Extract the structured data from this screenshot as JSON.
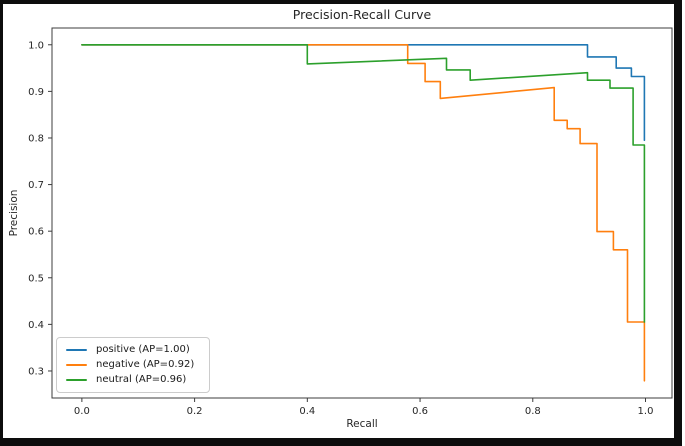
{
  "window": {
    "background": "#ffffff",
    "frame_color": "#0d0d0d"
  },
  "style": {
    "axis_color": "#3c3c3c",
    "text_color": "#262626",
    "legend_border": "#cccccc"
  },
  "chart_data": {
    "type": "line",
    "title": "Precision-Recall Curve",
    "xlabel": "Recall",
    "ylabel": "Precision",
    "xlim": [
      -0.053,
      1.047
    ],
    "ylim": [
      0.242,
      1.036
    ],
    "grid": false,
    "legend_position": "lower left",
    "x_ticks": [
      {
        "value": 0.0,
        "label": "0.0"
      },
      {
        "value": 0.2,
        "label": "0.2"
      },
      {
        "value": 0.4,
        "label": "0.4"
      },
      {
        "value": 0.6,
        "label": "0.6"
      },
      {
        "value": 0.8,
        "label": "0.8"
      },
      {
        "value": 1.0,
        "label": "1.0"
      }
    ],
    "y_ticks": [
      {
        "value": 0.3,
        "label": "0.3"
      },
      {
        "value": 0.4,
        "label": "0.4"
      },
      {
        "value": 0.5,
        "label": "0.5"
      },
      {
        "value": 0.6,
        "label": "0.6"
      },
      {
        "value": 0.7,
        "label": "0.7"
      },
      {
        "value": 0.8,
        "label": "0.8"
      },
      {
        "value": 0.9,
        "label": "0.9"
      },
      {
        "value": 1.0,
        "label": "1.0"
      }
    ],
    "series": [
      {
        "name": "positive",
        "legend_label": "positive (AP=1.00)",
        "ap": 1.0,
        "color": "#1f77b4",
        "points": [
          [
            0.0,
            1.0
          ],
          [
            0.897,
            1.0
          ],
          [
            0.897,
            0.974
          ],
          [
            0.948,
            0.974
          ],
          [
            0.948,
            0.95
          ],
          [
            0.975,
            0.95
          ],
          [
            0.975,
            0.932
          ],
          [
            0.998,
            0.932
          ],
          [
            0.998,
            0.795
          ]
        ]
      },
      {
        "name": "negative",
        "legend_label": "negative (AP=0.92)",
        "ap": 0.92,
        "color": "#ff7f0e",
        "points": [
          [
            0.0,
            1.0
          ],
          [
            0.578,
            1.0
          ],
          [
            0.578,
            0.96
          ],
          [
            0.609,
            0.96
          ],
          [
            0.609,
            0.921
          ],
          [
            0.636,
            0.921
          ],
          [
            0.636,
            0.885
          ],
          [
            0.838,
            0.908
          ],
          [
            0.838,
            0.838
          ],
          [
            0.861,
            0.838
          ],
          [
            0.861,
            0.82
          ],
          [
            0.884,
            0.82
          ],
          [
            0.884,
            0.788
          ],
          [
            0.914,
            0.788
          ],
          [
            0.914,
            0.599
          ],
          [
            0.943,
            0.599
          ],
          [
            0.943,
            0.56
          ],
          [
            0.968,
            0.56
          ],
          [
            0.968,
            0.405
          ],
          [
            0.998,
            0.405
          ],
          [
            0.998,
            0.279
          ]
        ]
      },
      {
        "name": "neutral",
        "legend_label": "neutral (AP=0.96)",
        "ap": 0.96,
        "color": "#2ca02c",
        "points": [
          [
            0.0,
            1.0
          ],
          [
            0.4,
            1.0
          ],
          [
            0.4,
            0.959
          ],
          [
            0.647,
            0.971
          ],
          [
            0.647,
            0.946
          ],
          [
            0.689,
            0.946
          ],
          [
            0.689,
            0.924
          ],
          [
            0.897,
            0.94
          ],
          [
            0.897,
            0.924
          ],
          [
            0.937,
            0.924
          ],
          [
            0.937,
            0.907
          ],
          [
            0.978,
            0.907
          ],
          [
            0.978,
            0.785
          ],
          [
            0.998,
            0.785
          ],
          [
            0.998,
            0.405
          ]
        ]
      }
    ]
  }
}
